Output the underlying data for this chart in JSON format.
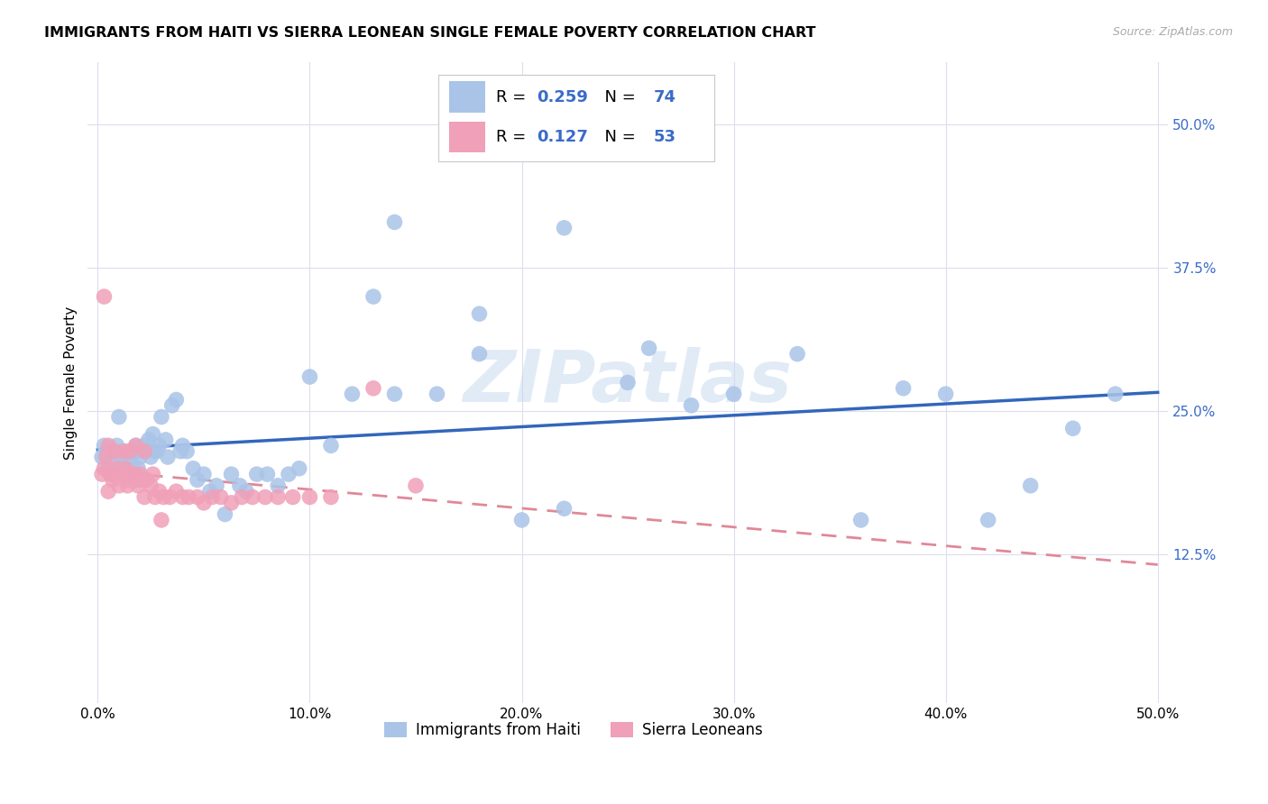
{
  "title": "IMMIGRANTS FROM HAITI VS SIERRA LEONEAN SINGLE FEMALE POVERTY CORRELATION CHART",
  "source": "Source: ZipAtlas.com",
  "ylabel": "Single Female Poverty",
  "ytick_vals": [
    0.125,
    0.25,
    0.375,
    0.5
  ],
  "ytick_labels": [
    "12.5%",
    "25.0%",
    "37.5%",
    "50.0%"
  ],
  "xtick_vals": [
    0.0,
    0.1,
    0.2,
    0.3,
    0.4,
    0.5
  ],
  "xtick_labels": [
    "0.0%",
    "10.0%",
    "20.0%",
    "30.0%",
    "40.0%",
    "50.0%"
  ],
  "xlim": [
    -0.005,
    0.505
  ],
  "ylim": [
    -0.005,
    0.555
  ],
  "color_haiti": "#aac4e8",
  "color_sierra": "#f0a0b8",
  "trendline_haiti_color": "#3366bb",
  "trendline_sierra_color": "#e08898",
  "watermark_color": "#c5d8ef",
  "watermark": "ZIPatlas",
  "legend_label1": "Immigrants from Haiti",
  "legend_label2": "Sierra Leoneans",
  "R_haiti": "0.259",
  "N_haiti": "74",
  "R_sierra": "0.127",
  "N_sierra": "53",
  "blue_text_color": "#3a6bc8",
  "haiti_x": [
    0.002,
    0.003,
    0.004,
    0.005,
    0.006,
    0.007,
    0.008,
    0.009,
    0.01,
    0.011,
    0.012,
    0.013,
    0.014,
    0.015,
    0.016,
    0.017,
    0.018,
    0.019,
    0.02,
    0.021,
    0.022,
    0.023,
    0.024,
    0.025,
    0.026,
    0.027,
    0.028,
    0.029,
    0.03,
    0.032,
    0.033,
    0.035,
    0.037,
    0.039,
    0.04,
    0.042,
    0.045,
    0.047,
    0.05,
    0.053,
    0.056,
    0.06,
    0.063,
    0.067,
    0.07,
    0.075,
    0.08,
    0.085,
    0.09,
    0.095,
    0.1,
    0.11,
    0.12,
    0.13,
    0.14,
    0.16,
    0.18,
    0.2,
    0.22,
    0.25,
    0.28,
    0.3,
    0.33,
    0.36,
    0.38,
    0.4,
    0.42,
    0.44,
    0.46,
    0.48,
    0.22,
    0.26,
    0.18,
    0.14
  ],
  "haiti_y": [
    0.21,
    0.22,
    0.215,
    0.2,
    0.195,
    0.205,
    0.215,
    0.22,
    0.245,
    0.21,
    0.2,
    0.205,
    0.215,
    0.195,
    0.205,
    0.215,
    0.22,
    0.2,
    0.21,
    0.215,
    0.22,
    0.215,
    0.225,
    0.21,
    0.23,
    0.215,
    0.215,
    0.22,
    0.245,
    0.225,
    0.21,
    0.255,
    0.26,
    0.215,
    0.22,
    0.215,
    0.2,
    0.19,
    0.195,
    0.18,
    0.185,
    0.16,
    0.195,
    0.185,
    0.18,
    0.195,
    0.195,
    0.185,
    0.195,
    0.2,
    0.28,
    0.22,
    0.265,
    0.35,
    0.265,
    0.265,
    0.3,
    0.155,
    0.165,
    0.275,
    0.255,
    0.265,
    0.3,
    0.155,
    0.27,
    0.265,
    0.155,
    0.185,
    0.235,
    0.265,
    0.41,
    0.305,
    0.335,
    0.415
  ],
  "sierra_x": [
    0.002,
    0.003,
    0.004,
    0.005,
    0.006,
    0.007,
    0.008,
    0.009,
    0.01,
    0.011,
    0.012,
    0.013,
    0.014,
    0.015,
    0.016,
    0.017,
    0.018,
    0.019,
    0.02,
    0.021,
    0.022,
    0.023,
    0.025,
    0.027,
    0.029,
    0.031,
    0.034,
    0.037,
    0.04,
    0.043,
    0.047,
    0.05,
    0.054,
    0.058,
    0.063,
    0.068,
    0.073,
    0.079,
    0.085,
    0.092,
    0.1,
    0.11,
    0.13,
    0.15,
    0.003,
    0.005,
    0.008,
    0.012,
    0.015,
    0.018,
    0.022,
    0.026,
    0.03
  ],
  "sierra_y": [
    0.195,
    0.2,
    0.21,
    0.18,
    0.195,
    0.19,
    0.195,
    0.2,
    0.185,
    0.195,
    0.195,
    0.2,
    0.185,
    0.19,
    0.195,
    0.195,
    0.19,
    0.185,
    0.195,
    0.19,
    0.175,
    0.19,
    0.185,
    0.175,
    0.18,
    0.175,
    0.175,
    0.18,
    0.175,
    0.175,
    0.175,
    0.17,
    0.175,
    0.175,
    0.17,
    0.175,
    0.175,
    0.175,
    0.175,
    0.175,
    0.175,
    0.175,
    0.27,
    0.185,
    0.35,
    0.22,
    0.215,
    0.215,
    0.215,
    0.22,
    0.215,
    0.195,
    0.155
  ]
}
